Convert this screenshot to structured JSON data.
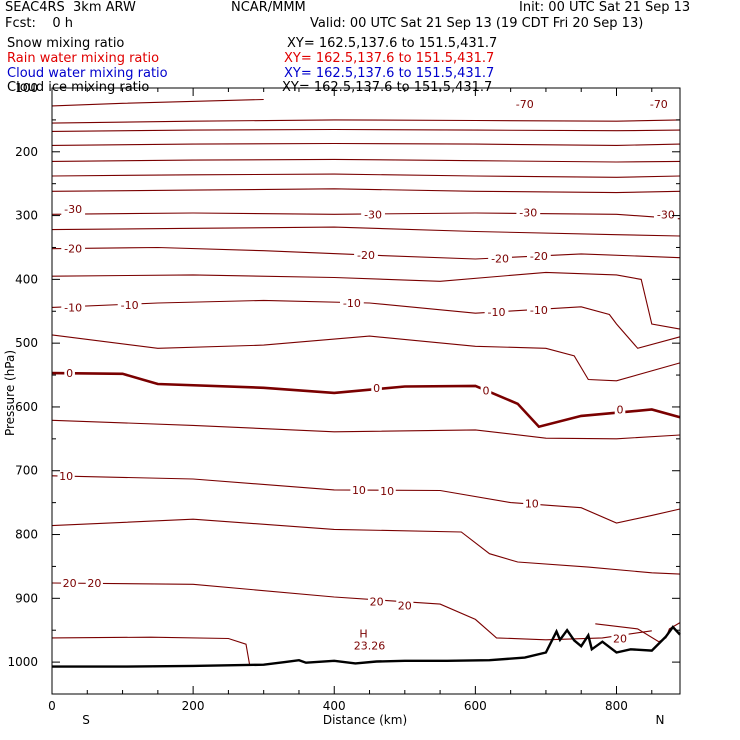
{
  "header": {
    "model": "SEAC4RS  3km ARW",
    "center": "NCAR/MMM",
    "init": "Init: 00 UTC Sat 21 Sep 13",
    "fcst": "Fcst:    0 h",
    "valid": "Valid: 00 UTC Sat 21 Sep 13 (19 CDT Fri 20 Sep 13)"
  },
  "fields": [
    {
      "name": "Snow mixing ratio",
      "xy": "XY= 162.5,137.6 to 151.5,431.7",
      "color": "#000000"
    },
    {
      "name": "Rain water mixing ratio",
      "xy": "XY= 162.5,137.6 to 151.5,431.7",
      "color": "#e00000"
    },
    {
      "name": "Cloud water mixing ratio",
      "xy": "XY= 162.5,137.6 to 151.5,431.7",
      "color": "#0000cc"
    },
    {
      "name": "Cloud ice mixing ratio",
      "xy": "XY= 162.5,137.6 to 151.5,431.7",
      "color": "#000000"
    }
  ],
  "colors": {
    "contour": "#7a0000",
    "terrain": "#000000",
    "axis": "#000000"
  },
  "chart_data": {
    "type": "contour",
    "xlabel": "Distance (km)",
    "ylabel": "Pressure (hPa)",
    "xlim": [
      0,
      890
    ],
    "ylim": [
      1050,
      100
    ],
    "x_ticks": [
      0,
      200,
      400,
      600,
      800
    ],
    "y_ticks": [
      100,
      200,
      300,
      400,
      500,
      600,
      700,
      800,
      900,
      1000
    ],
    "x_tick_labels": [
      "0",
      "200",
      "400",
      "600",
      "800"
    ],
    "y_tick_labels": [
      "100",
      "200",
      "300",
      "400",
      "500",
      "600",
      "700",
      "800",
      "900",
      "1000"
    ],
    "endpoint_labels": {
      "left": "S",
      "right": "N"
    },
    "max_marker": {
      "label": "H",
      "value": "23.26",
      "x": 450,
      "p": 990
    },
    "contour_labels": [
      {
        "text": "-70",
        "x": 670,
        "p": 125
      },
      {
        "text": "-70",
        "x": 860,
        "p": 125
      },
      {
        "text": "-30",
        "x": 30,
        "p": 290
      },
      {
        "text": "-30",
        "x": 455,
        "p": 298
      },
      {
        "text": "-30",
        "x": 675,
        "p": 295
      },
      {
        "text": "-30",
        "x": 870,
        "p": 298
      },
      {
        "text": "-20",
        "x": 30,
        "p": 352
      },
      {
        "text": "-20",
        "x": 445,
        "p": 362
      },
      {
        "text": "-20",
        "x": 635,
        "p": 367
      },
      {
        "text": "-20",
        "x": 690,
        "p": 363
      },
      {
        "text": "-10",
        "x": 30,
        "p": 444
      },
      {
        "text": "-10",
        "x": 110,
        "p": 440
      },
      {
        "text": "-10",
        "x": 425,
        "p": 437
      },
      {
        "text": "-10",
        "x": 630,
        "p": 451
      },
      {
        "text": "-10",
        "x": 690,
        "p": 448
      },
      {
        "text": "0",
        "x": 25,
        "p": 547
      },
      {
        "text": "0",
        "x": 460,
        "p": 570
      },
      {
        "text": "0",
        "x": 615,
        "p": 574
      },
      {
        "text": "0",
        "x": 805,
        "p": 604
      },
      {
        "text": "10",
        "x": 20,
        "p": 708
      },
      {
        "text": "10",
        "x": 435,
        "p": 730
      },
      {
        "text": "10",
        "x": 475,
        "p": 732
      },
      {
        "text": "10",
        "x": 680,
        "p": 751
      },
      {
        "text": "20",
        "x": 25,
        "p": 876
      },
      {
        "text": "20",
        "x": 60,
        "p": 876
      },
      {
        "text": "20",
        "x": 460,
        "p": 905
      },
      {
        "text": "20",
        "x": 500,
        "p": 911
      },
      {
        "text": "20",
        "x": 805,
        "p": 963
      }
    ],
    "contours": [
      {
        "level": "-80",
        "bold": false,
        "points": [
          [
            0,
            128
          ],
          [
            100,
            124
          ],
          [
            300,
            118
          ]
        ]
      },
      {
        "level": "-70",
        "bold": false,
        "points": [
          [
            0,
            155
          ],
          [
            200,
            152
          ],
          [
            400,
            150
          ],
          [
            600,
            151
          ],
          [
            800,
            152
          ],
          [
            890,
            150
          ]
        ]
      },
      {
        "level": "-70b",
        "bold": false,
        "points": [
          [
            0,
            168
          ],
          [
            200,
            166
          ],
          [
            400,
            165
          ],
          [
            600,
            166
          ],
          [
            800,
            167
          ],
          [
            890,
            166
          ]
        ]
      },
      {
        "level": "-60",
        "bold": false,
        "points": [
          [
            0,
            190
          ],
          [
            200,
            188
          ],
          [
            400,
            187
          ],
          [
            600,
            188
          ],
          [
            800,
            190
          ],
          [
            890,
            188
          ]
        ]
      },
      {
        "level": "-50",
        "bold": false,
        "points": [
          [
            0,
            215
          ],
          [
            200,
            213
          ],
          [
            400,
            212
          ],
          [
            600,
            214
          ],
          [
            800,
            216
          ],
          [
            890,
            215
          ]
        ]
      },
      {
        "level": "-40",
        "bold": false,
        "points": [
          [
            0,
            238
          ],
          [
            200,
            236
          ],
          [
            400,
            235
          ],
          [
            600,
            238
          ],
          [
            800,
            240
          ],
          [
            890,
            238
          ]
        ]
      },
      {
        "level": "-35",
        "bold": false,
        "points": [
          [
            0,
            262
          ],
          [
            200,
            260
          ],
          [
            400,
            258
          ],
          [
            600,
            262
          ],
          [
            800,
            264
          ],
          [
            890,
            262
          ]
        ]
      },
      {
        "level": "-30",
        "bold": false,
        "points": [
          [
            0,
            298
          ],
          [
            200,
            296
          ],
          [
            400,
            298
          ],
          [
            600,
            296
          ],
          [
            800,
            298
          ],
          [
            890,
            305
          ]
        ]
      },
      {
        "level": "-25",
        "bold": false,
        "points": [
          [
            0,
            322
          ],
          [
            200,
            320
          ],
          [
            400,
            318
          ],
          [
            600,
            325
          ],
          [
            800,
            330
          ],
          [
            890,
            332
          ]
        ]
      },
      {
        "level": "-20",
        "bold": false,
        "points": [
          [
            0,
            352
          ],
          [
            150,
            350
          ],
          [
            300,
            355
          ],
          [
            450,
            362
          ],
          [
            600,
            368
          ],
          [
            750,
            360
          ],
          [
            890,
            366
          ]
        ]
      },
      {
        "level": "-15",
        "bold": false,
        "points": [
          [
            0,
            395
          ],
          [
            200,
            393
          ],
          [
            400,
            397
          ],
          [
            550,
            403
          ],
          [
            700,
            389
          ],
          [
            800,
            393
          ],
          [
            835,
            400
          ],
          [
            850,
            470
          ],
          [
            890,
            478
          ]
        ]
      },
      {
        "level": "-10",
        "bold": false,
        "points": [
          [
            0,
            444
          ],
          [
            150,
            437
          ],
          [
            300,
            433
          ],
          [
            450,
            437
          ],
          [
            600,
            453
          ],
          [
            750,
            443
          ],
          [
            790,
            455
          ],
          [
            800,
            470
          ],
          [
            830,
            508
          ],
          [
            890,
            490
          ]
        ]
      },
      {
        "level": "-5",
        "bold": false,
        "points": [
          [
            0,
            487
          ],
          [
            150,
            508
          ],
          [
            300,
            503
          ],
          [
            450,
            489
          ],
          [
            600,
            505
          ],
          [
            700,
            508
          ],
          [
            740,
            520
          ],
          [
            760,
            557
          ],
          [
            800,
            559
          ],
          [
            890,
            531
          ]
        ]
      },
      {
        "level": "0",
        "bold": true,
        "points": [
          [
            0,
            547
          ],
          [
            100,
            548
          ],
          [
            150,
            564
          ],
          [
            300,
            570
          ],
          [
            400,
            578
          ],
          [
            500,
            568
          ],
          [
            600,
            567
          ],
          [
            660,
            595
          ],
          [
            690,
            631
          ],
          [
            750,
            614
          ],
          [
            850,
            604
          ],
          [
            890,
            616
          ]
        ]
      },
      {
        "level": "5",
        "bold": false,
        "points": [
          [
            0,
            621
          ],
          [
            200,
            629
          ],
          [
            400,
            639
          ],
          [
            600,
            636
          ],
          [
            700,
            649
          ],
          [
            800,
            650
          ],
          [
            890,
            644
          ]
        ]
      },
      {
        "level": "10",
        "bold": false,
        "points": [
          [
            0,
            708
          ],
          [
            200,
            713
          ],
          [
            400,
            730
          ],
          [
            550,
            731
          ],
          [
            650,
            750
          ],
          [
            750,
            758
          ],
          [
            800,
            782
          ],
          [
            850,
            770
          ],
          [
            890,
            760
          ]
        ]
      },
      {
        "level": "15",
        "bold": false,
        "points": [
          [
            0,
            786
          ],
          [
            200,
            776
          ],
          [
            400,
            792
          ],
          [
            580,
            796
          ],
          [
            620,
            830
          ],
          [
            660,
            843
          ],
          [
            760,
            851
          ],
          [
            850,
            860
          ],
          [
            890,
            862
          ]
        ]
      },
      {
        "level": "20",
        "bold": false,
        "points": [
          [
            0,
            876
          ],
          [
            200,
            878
          ],
          [
            400,
            898
          ],
          [
            550,
            909
          ],
          [
            600,
            933
          ],
          [
            630,
            962
          ],
          [
            700,
            965
          ],
          [
            780,
            962
          ],
          [
            850,
            951
          ]
        ]
      },
      {
        "level": "20b",
        "bold": false,
        "points": [
          [
            770,
            940
          ],
          [
            830,
            948
          ],
          [
            860,
            968
          ],
          [
            870,
            962
          ],
          [
            875,
            948
          ],
          [
            890,
            938
          ]
        ]
      },
      {
        "level": "25",
        "bold": false,
        "points": [
          [
            0,
            962
          ],
          [
            140,
            961
          ],
          [
            250,
            963
          ],
          [
            275,
            972
          ],
          [
            280,
            1004
          ]
        ]
      }
    ],
    "terrain": [
      [
        0,
        1007
      ],
      [
        100,
        1007
      ],
      [
        200,
        1006
      ],
      [
        300,
        1004
      ],
      [
        330,
        1000
      ],
      [
        350,
        997
      ],
      [
        360,
        1001
      ],
      [
        400,
        998
      ],
      [
        430,
        1002
      ],
      [
        460,
        999
      ],
      [
        500,
        998
      ],
      [
        560,
        998
      ],
      [
        620,
        997
      ],
      [
        670,
        993
      ],
      [
        700,
        985
      ],
      [
        715,
        952
      ],
      [
        720,
        965
      ],
      [
        730,
        950
      ],
      [
        740,
        966
      ],
      [
        750,
        975
      ],
      [
        760,
        958
      ],
      [
        765,
        980
      ],
      [
        780,
        968
      ],
      [
        800,
        985
      ],
      [
        820,
        980
      ],
      [
        850,
        982
      ],
      [
        870,
        960
      ],
      [
        880,
        945
      ],
      [
        890,
        957
      ]
    ]
  }
}
